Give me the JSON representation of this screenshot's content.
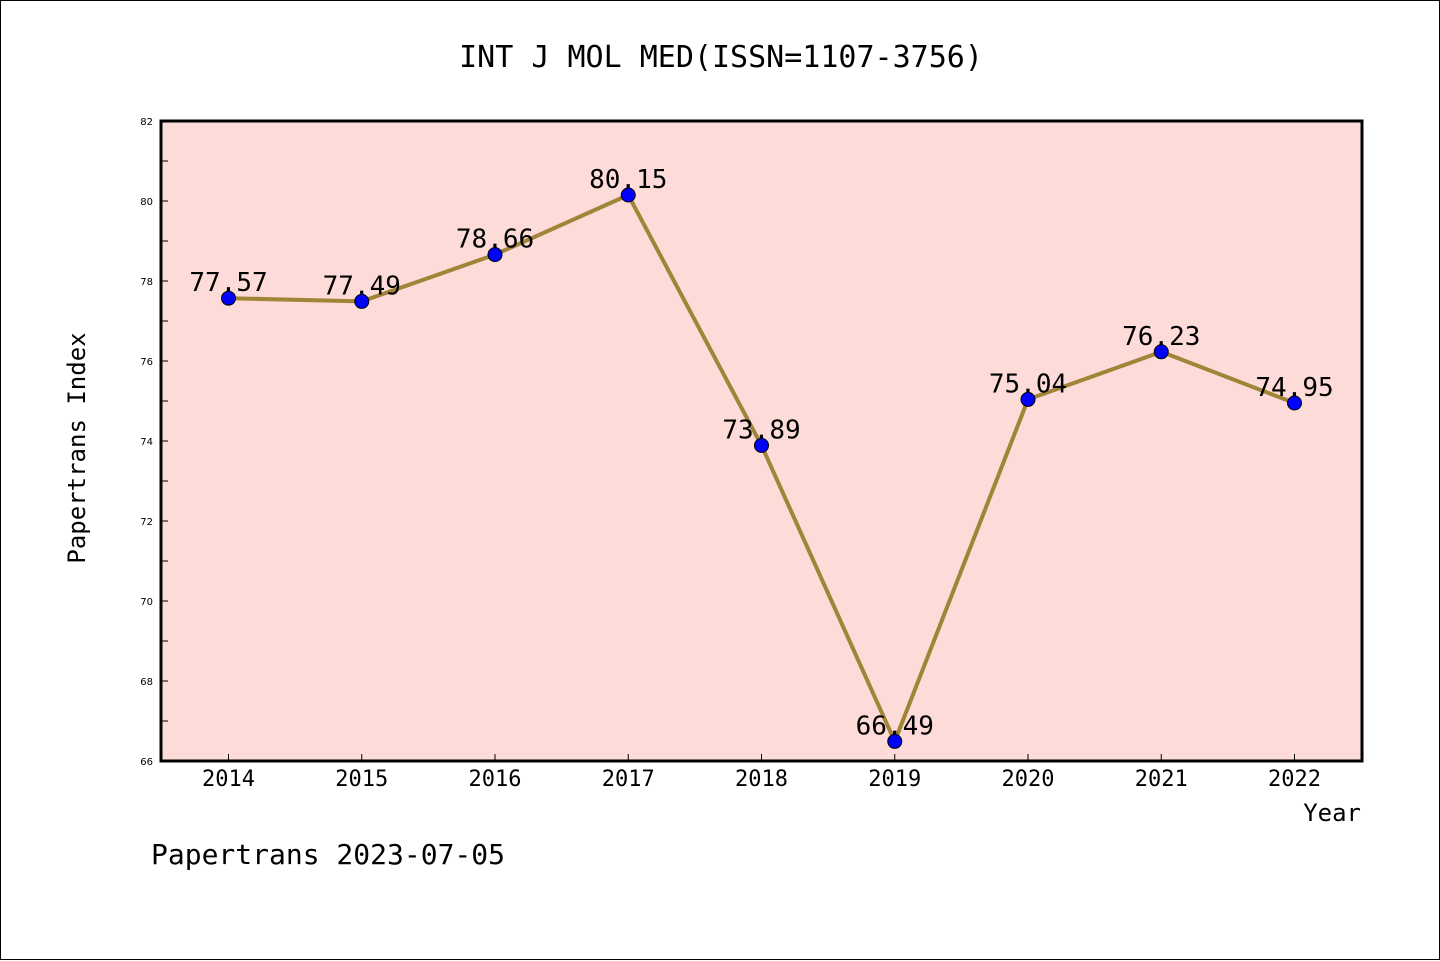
{
  "chart_data": {
    "type": "line",
    "title": "INT J MOL MED(ISSN=1107-3756)",
    "xlabel": "Year",
    "ylabel": "Papertrans Index",
    "categories": [
      "2014",
      "2015",
      "2016",
      "2017",
      "2018",
      "2019",
      "2020",
      "2021",
      "2022"
    ],
    "values": [
      77.57,
      77.49,
      78.66,
      80.15,
      73.89,
      66.49,
      75.04,
      76.23,
      74.95
    ],
    "data_labels": [
      "77.57",
      "77.49",
      "78.66",
      "80.15",
      "73.89",
      "66.49",
      "75.04",
      "76.23",
      "74.95"
    ],
    "y_ticks": [
      "66",
      "68",
      "70",
      "72",
      "74",
      "76",
      "78",
      "80",
      "82"
    ],
    "ylim": [
      66,
      82
    ],
    "grid": false,
    "legend": "none",
    "colors": {
      "plot_background": "#fddbd8",
      "line": "#a08438",
      "marker": "#0000ff",
      "marker_edge": "#000000",
      "axes": "#000000"
    }
  },
  "footer": {
    "note": "Papertrans 2023-07-05"
  }
}
